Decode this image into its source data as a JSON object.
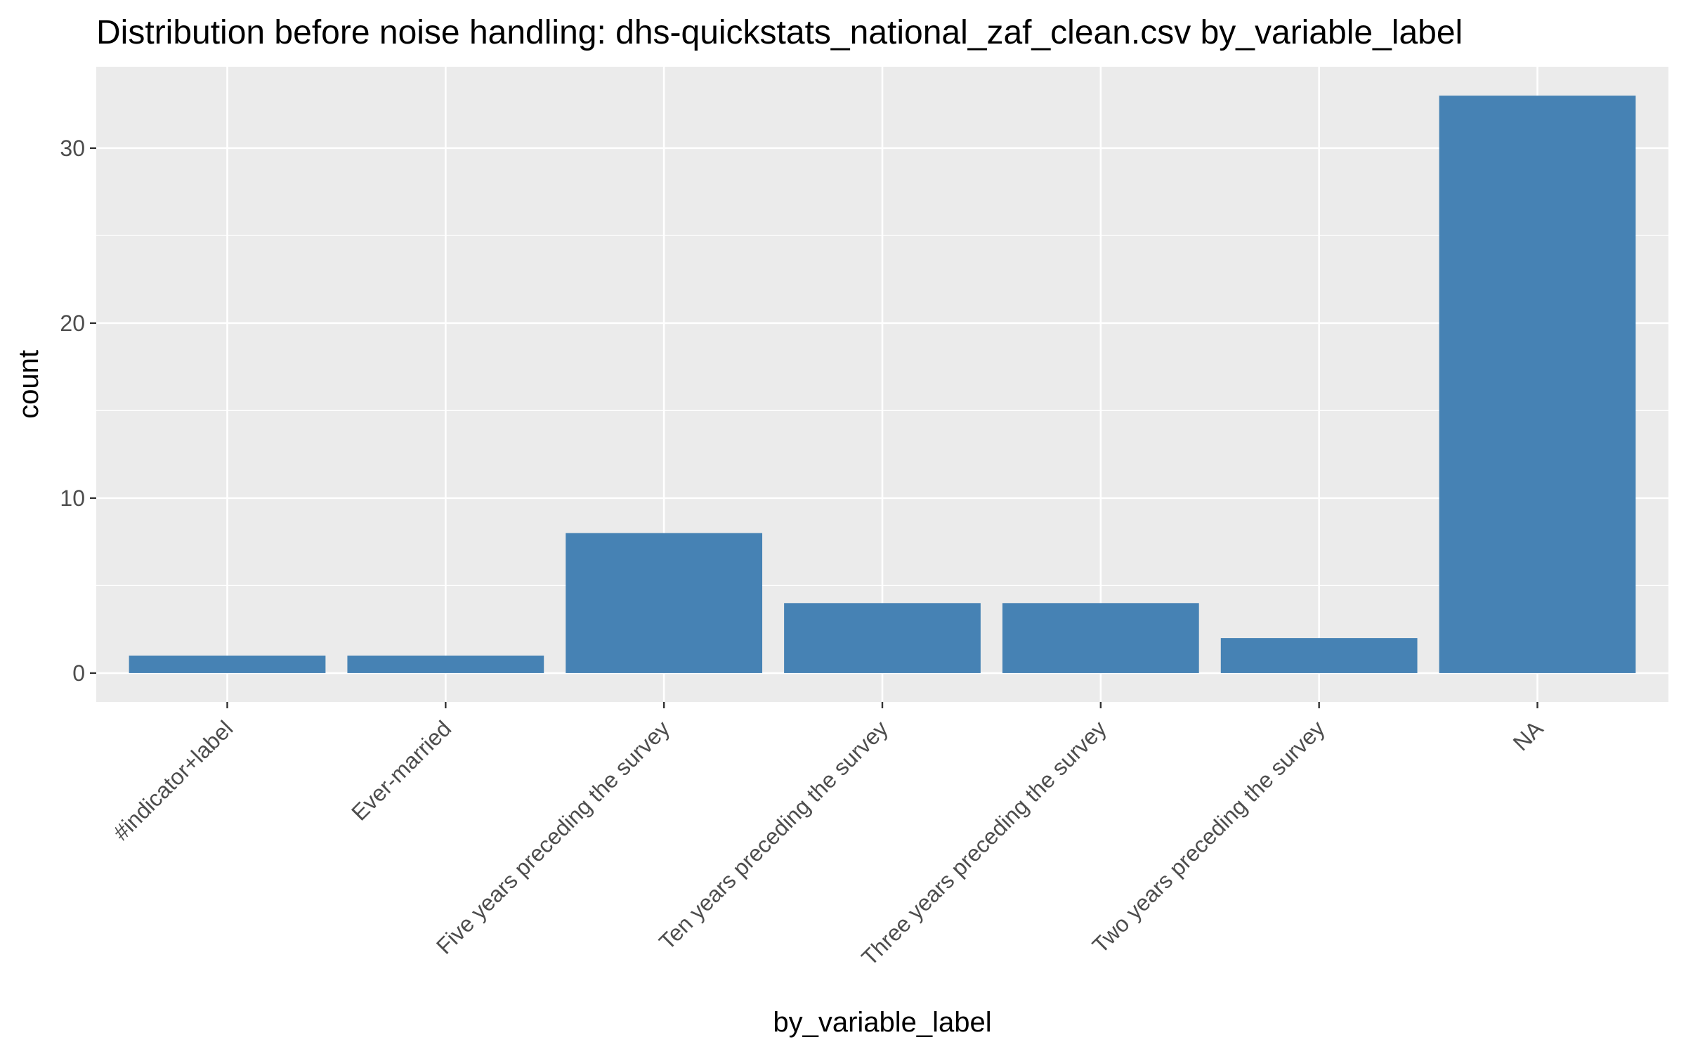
{
  "chart_data": {
    "type": "bar",
    "title": "Distribution before noise handling: dhs-quickstats_national_zaf_clean.csv by_variable_label",
    "xlabel": "by_variable_label",
    "ylabel": "count",
    "categories": [
      "#indicator+label",
      "Ever-married",
      "Five years preceding the survey",
      "Ten years preceding the survey",
      "Three years preceding the survey",
      "Two years preceding the survey",
      "NA"
    ],
    "values": [
      1,
      1,
      8,
      4,
      4,
      2,
      33
    ],
    "ylim": [
      -1.65,
      34.65
    ],
    "y_ticks": [
      0,
      10,
      20,
      30
    ],
    "y_tick_labels": [
      "0",
      "10",
      "20",
      "30"
    ],
    "grid": true,
    "legend": "none",
    "colors": {
      "bar": "#4682b4",
      "panel_background": "#ebebeb",
      "grid_line": "#ffffff",
      "tick_mark": "#333333",
      "tick_text": "#4d4d4d",
      "text": "#000000"
    }
  }
}
